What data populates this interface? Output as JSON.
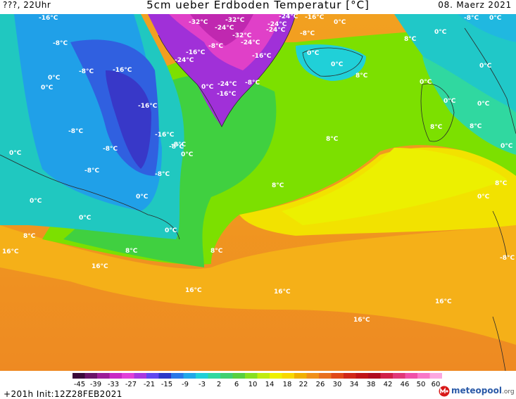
{
  "header": {
    "location": "???, 22Uhr",
    "title": "5cm ueber Erdboden Temperatur [°C]",
    "date": "08. Maerz 2021"
  },
  "map_labels": [
    "-16°C",
    "-8°C",
    "-8°C",
    "-16°C",
    "-16°C",
    "-8°C",
    "-8°C",
    "-8°C",
    "-8°C",
    "-16°C",
    "-8°C",
    "-8°C",
    "-32°C",
    "-24°C",
    "-32°C",
    "-24°C",
    "-24°C",
    "-16°C",
    "-32°C",
    "-24°C",
    "-24°C",
    "-16°C",
    "-8°C",
    "-16°C",
    "-24°C",
    "-8°C",
    "-16°C",
    "0°C",
    "0°C",
    "0°C",
    "0°C",
    "0°C",
    "0°C",
    "0°C",
    "0°C",
    "0°C",
    "0°C",
    "0°C",
    "0°C",
    "0°C",
    "0°C",
    "0°C",
    "0°C",
    "0°C",
    "0°C",
    "0°C",
    "-8°C",
    "8°C",
    "8°C",
    "8°C",
    "8°C",
    "8°C",
    "8°C",
    "8°C",
    "8°C",
    "8°C",
    "8°C",
    "16°C",
    "16°C",
    "16°C",
    "16°C",
    "16°C",
    "16°C",
    "-8°C",
    "0°C",
    "-8°C",
    "-24°C"
  ],
  "legend": {
    "ticks": [
      "-45",
      "-39",
      "-33",
      "-27",
      "-21",
      "-15",
      "-9",
      "-3",
      "2",
      "6",
      "10",
      "14",
      "18",
      "22",
      "26",
      "30",
      "34",
      "38",
      "42",
      "46",
      "50",
      "60"
    ],
    "colors": [
      "#3a0a3a",
      "#6a1468",
      "#9c1e98",
      "#c82ac4",
      "#e040d8",
      "#a838e0",
      "#6048f0",
      "#2c38c8",
      "#2878e8",
      "#20a8e8",
      "#20d0d8",
      "#30d8a0",
      "#40d070",
      "#58d040",
      "#88e020",
      "#c0ec10",
      "#eef000",
      "#f8d800",
      "#f0b000",
      "#f09018",
      "#e87020",
      "#e04818",
      "#d02818",
      "#c01418",
      "#b00c20",
      "#d02048",
      "#e03878",
      "#f050a8",
      "#f878c8",
      "#fca8e0"
    ]
  },
  "footer": {
    "run": "+201h Init:12Z28FEB2021",
    "brand": "meteopool",
    "brand_suffix": ".org"
  }
}
